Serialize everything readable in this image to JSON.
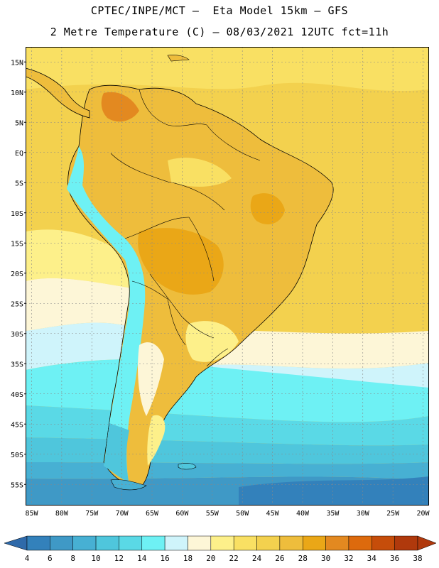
{
  "header": {
    "title_line1": "CPTEC/INPE/MCT –  Eta Model 15km – GFS",
    "title_line2": "2 Metre Temperature (C) – 08/03/2021 12UTC fct=11h"
  },
  "map": {
    "lat_labels": [
      "15N",
      "10N",
      "5N",
      "EQ",
      "5S",
      "10S",
      "15S",
      "20S",
      "25S",
      "30S",
      "35S",
      "40S",
      "45S",
      "50S",
      "55S"
    ],
    "lon_labels": [
      "85W",
      "80W",
      "75W",
      "70W",
      "65W",
      "60W",
      "55W",
      "50W",
      "45W",
      "40W",
      "35W",
      "30W",
      "25W",
      "20W"
    ],
    "lat_range": [
      17.5,
      -58.5
    ],
    "lon_range": [
      -86,
      -19
    ]
  },
  "colorbar": {
    "labels": [
      "4",
      "6",
      "8",
      "10",
      "12",
      "14",
      "16",
      "18",
      "20",
      "22",
      "24",
      "26",
      "28",
      "30",
      "32",
      "34",
      "36",
      "38"
    ],
    "colors": [
      "#2f6aaa",
      "#3381bb",
      "#3f99c6",
      "#47b0d3",
      "#4fc6dc",
      "#5ad9e6",
      "#6ef1f4",
      "#cff4fb",
      "#fdf6d7",
      "#fdf08a",
      "#f9e063",
      "#f3d14e",
      "#eebd3c",
      "#eaa717",
      "#e38920",
      "#dd6a0d",
      "#c64d0a",
      "#b0390c"
    ]
  }
}
